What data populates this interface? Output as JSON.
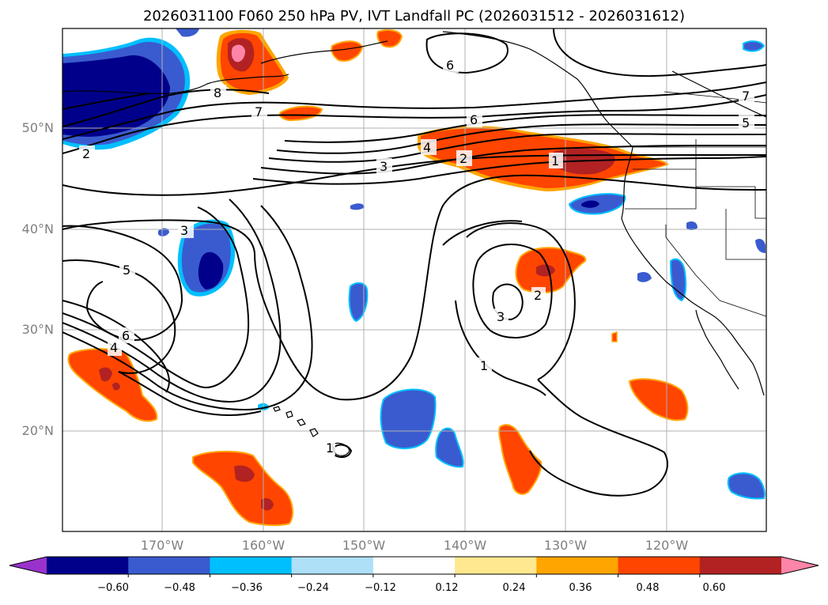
{
  "title": "2026031100 F060 250 hPa PV, IVT Landfall PC (2026031512 - 2026031612)",
  "lat_labels": [
    "50°N",
    "40°N",
    "30°N",
    "20°N"
  ],
  "lon_labels": [
    "170°W",
    "160°W",
    "150°W",
    "140°W",
    "130°W",
    "120°W"
  ],
  "contour_labels": [
    "2",
    "8",
    "7",
    "6",
    "6",
    "7",
    "5",
    "4",
    "2",
    "1",
    "3",
    "3",
    "5",
    "6",
    "4",
    "3",
    "2",
    "1",
    "1"
  ],
  "colorbar": {
    "ticks": [
      "−0.60",
      "−0.48",
      "−0.36",
      "−0.24",
      "−0.12",
      "0.12",
      "0.24",
      "0.36",
      "0.48",
      "0.60"
    ],
    "colors": [
      "#9932cc",
      "#00008b",
      "#3a5bcf",
      "#00bfff",
      "#aee0f8",
      "#ffffff",
      "#ffe88f",
      "#ffa500",
      "#ff4500",
      "#b22222",
      "#ff85a8"
    ]
  }
}
